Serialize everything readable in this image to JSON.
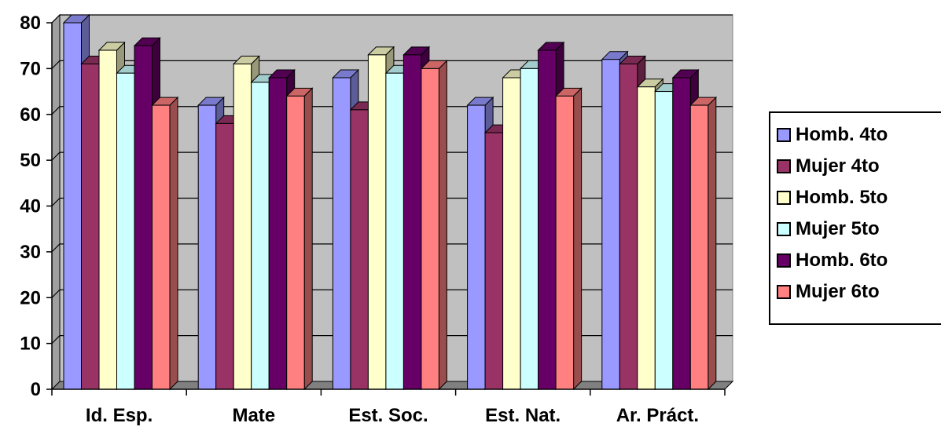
{
  "chart_data": {
    "type": "bar",
    "categories": [
      "Id. Esp.",
      "Mate",
      "Est. Soc.",
      "Est. Nat.",
      "Ar. Práct."
    ],
    "series": [
      {
        "name": "Homb. 4to",
        "color": "#9999ff",
        "values": [
          80,
          62,
          68,
          62,
          72
        ]
      },
      {
        "name": "Mujer 4to",
        "color": "#993366",
        "values": [
          71,
          58,
          61,
          56,
          71
        ]
      },
      {
        "name": "Homb. 5to",
        "color": "#ffffcc",
        "values": [
          74,
          71,
          73,
          68,
          66
        ]
      },
      {
        "name": "Mujer 5to",
        "color": "#ccffff",
        "values": [
          69,
          67,
          69,
          70,
          65
        ]
      },
      {
        "name": "Homb. 6to",
        "color": "#660066",
        "values": [
          75,
          68,
          73,
          74,
          68
        ]
      },
      {
        "name": "Mujer 6to",
        "color": "#ff8080",
        "values": [
          62,
          64,
          70,
          64,
          62
        ]
      }
    ],
    "yticks": [
      "0",
      "10",
      "20",
      "30",
      "40",
      "50",
      "60",
      "70",
      "80"
    ],
    "ylim": [
      0,
      80
    ],
    "grid": true,
    "legend_position": "right",
    "plot_background": "#c0c0c0",
    "title": "",
    "xlabel": "",
    "ylabel": ""
  }
}
